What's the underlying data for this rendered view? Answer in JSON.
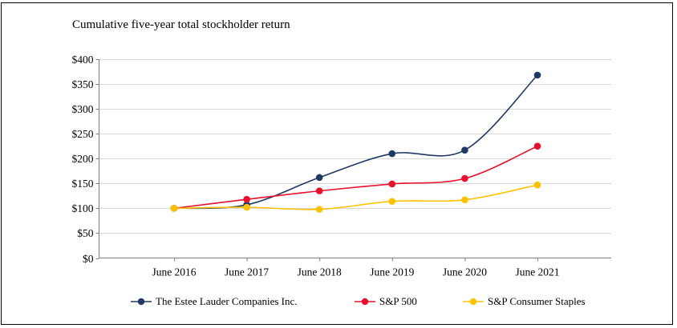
{
  "chart_data": {
    "type": "line",
    "title": "Cumulative five-year total stockholder return",
    "x": [
      "June 2016",
      "June 2017",
      "June 2018",
      "June 2019",
      "June 2020",
      "June 2021"
    ],
    "series": [
      {
        "name": "The Estee Lauder Companies Inc.",
        "color": "#1F3864",
        "values": [
          100,
          107,
          162,
          210,
          217,
          368
        ]
      },
      {
        "name": "S&P 500",
        "color": "#E8112D",
        "values": [
          100,
          118,
          135,
          149,
          160,
          225
        ]
      },
      {
        "name": "S&P Consumer Staples",
        "color": "#FFC000",
        "values": [
          100,
          102,
          98,
          114,
          117,
          147
        ]
      }
    ],
    "ylim": [
      0,
      400
    ],
    "ytick_step": 50,
    "ytick_labels": [
      "$0",
      "$50",
      "$100",
      "$150",
      "$200",
      "$250",
      "$300",
      "$350",
      "$400"
    ],
    "xlabel": "",
    "ylabel": "",
    "grid": true,
    "legend_position": "bottom",
    "line_style": "smooth",
    "gridline_color": "#D9D9D9",
    "axis_color": "#808080",
    "text_color": "#000000"
  }
}
